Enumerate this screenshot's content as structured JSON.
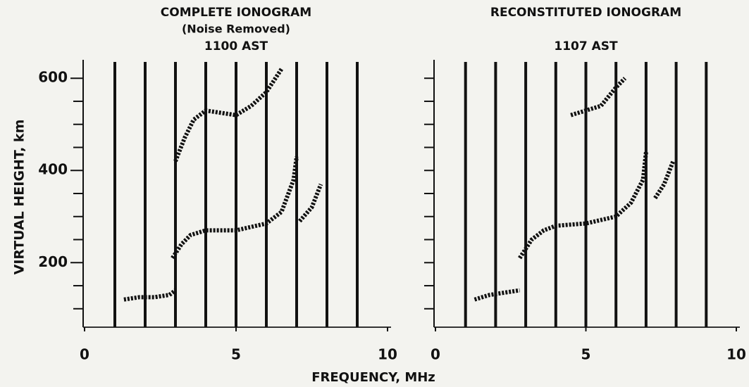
{
  "ylabel": "VIRTUAL HEIGHT, km",
  "xlabel": "FREQUENCY, MHz",
  "chart_data": [
    {
      "type": "line",
      "title": "COMPLETE IONOGRAM",
      "subtitle": "(Noise Removed)",
      "annotation": "1100 AST",
      "xlim": [
        0,
        10
      ],
      "xticks": [
        0,
        5,
        10
      ],
      "marker_lines": [
        1,
        2,
        3,
        4,
        5,
        6,
        7,
        8,
        9
      ],
      "ylim": [
        60,
        640
      ],
      "yticks": [
        200,
        400,
        600
      ],
      "yminor_ticks": [
        100,
        150,
        250,
        300,
        350,
        450,
        500,
        550
      ],
      "series": [
        {
          "color": "#111111",
          "x": [
            1.3,
            1.8,
            2.3,
            2.8,
            3.0
          ],
          "values": [
            120,
            125,
            125,
            130,
            140
          ]
        },
        {
          "color": "#111111",
          "x": [
            2.9,
            3.2,
            3.5,
            4.0,
            5.0,
            6.0,
            6.5,
            6.9,
            7.0
          ],
          "values": [
            210,
            240,
            260,
            270,
            270,
            285,
            310,
            380,
            430
          ]
        },
        {
          "color": "#111111",
          "x": [
            7.1,
            7.5,
            7.8
          ],
          "values": [
            290,
            320,
            370
          ]
        },
        {
          "color": "#111111",
          "x": [
            3.0,
            3.3,
            3.6,
            4.0,
            5.0,
            5.5,
            6.0,
            6.5
          ],
          "values": [
            420,
            470,
            510,
            530,
            520,
            540,
            570,
            620
          ]
        }
      ]
    },
    {
      "type": "line",
      "title": "RECONSTITUTED IONOGRAM",
      "annotation": "1107 AST",
      "xlim": [
        0,
        10
      ],
      "xticks": [
        0,
        5,
        10
      ],
      "marker_lines": [
        1,
        2,
        3,
        4,
        5,
        6,
        7,
        8,
        9
      ],
      "ylim": [
        60,
        640
      ],
      "yminor_ticks": [
        100,
        150,
        200,
        250,
        300,
        350,
        400,
        450,
        500,
        550,
        600
      ],
      "series": [
        {
          "color": "#111111",
          "x": [
            1.3,
            1.8,
            2.3,
            2.8
          ],
          "values": [
            120,
            130,
            135,
            140
          ]
        },
        {
          "color": "#111111",
          "x": [
            2.8,
            3.2,
            3.6,
            4.0,
            5.0,
            6.0,
            6.5,
            6.9,
            7.0
          ],
          "values": [
            210,
            250,
            270,
            280,
            285,
            300,
            330,
            380,
            440
          ]
        },
        {
          "color": "#111111",
          "x": [
            7.3,
            7.6,
            7.9
          ],
          "values": [
            340,
            370,
            420
          ]
        },
        {
          "color": "#111111",
          "x": [
            4.5,
            5.5,
            6.0,
            6.3
          ],
          "values": [
            520,
            540,
            580,
            600
          ]
        }
      ]
    }
  ]
}
